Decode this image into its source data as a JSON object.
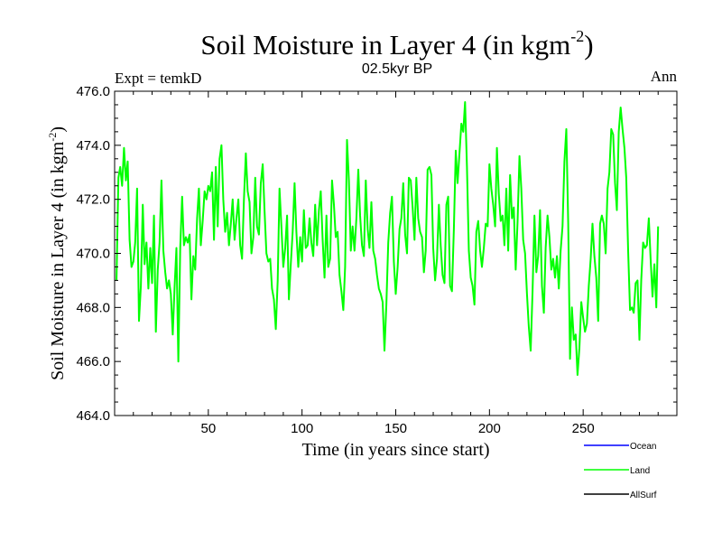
{
  "chart_data": {
    "type": "line",
    "title": "Soil Moisture in Layer 4 (in kgm",
    "title_superscript": "-2",
    "title_close": ")",
    "subtitle": "02.5kyr BP",
    "left_label": "Expt = temkD",
    "right_label": "Ann",
    "xlabel": "Time (in years since start)",
    "ylabel": "Soil Moisture in Layer 4 (in kgm",
    "ylabel_superscript": "-2",
    "ylabel_close": ")",
    "xlim": [
      0,
      300
    ],
    "ylim": [
      464,
      476
    ],
    "x_ticks": [
      50,
      100,
      150,
      200,
      250
    ],
    "x_tick_labels": [
      "50",
      "100",
      "150",
      "200",
      "250"
    ],
    "y_ticks": [
      464,
      466,
      468,
      470,
      472,
      474,
      476
    ],
    "y_tick_labels": [
      "464.0",
      "466.0",
      "468.0",
      "470.0",
      "472.0",
      "474.0",
      "476.0"
    ],
    "legend": [
      {
        "name": "Ocean",
        "color": "#0000ff"
      },
      {
        "name": "Land",
        "color": "#00ff00"
      },
      {
        "name": "AllSurf",
        "color": "#000000"
      }
    ],
    "series": [
      {
        "name": "Land",
        "color": "#00ff00",
        "x_start": 1,
        "x_step": 1,
        "values": [
          469.0,
          472.8,
          473.2,
          472.5,
          473.9,
          472.7,
          473.4,
          470.5,
          469.5,
          469.7,
          470.4,
          472.4,
          467.5,
          468.8,
          471.8,
          469.6,
          470.4,
          468.7,
          470.2,
          468.9,
          471.4,
          467.1,
          469.4,
          470.4,
          472.7,
          470.1,
          469.3,
          468.7,
          469.0,
          468.5,
          467.0,
          468.8,
          470.2,
          466.0,
          470.2,
          472.1,
          470.3,
          470.6,
          470.4,
          470.7,
          468.3,
          469.9,
          469.4,
          471.3,
          472.4,
          470.3,
          471.2,
          472.3,
          472.0,
          472.5,
          472.3,
          473.0,
          470.5,
          473.2,
          471.0,
          473.5,
          474.0,
          472.0,
          470.8,
          471.5,
          470.3,
          471.1,
          472.0,
          470.5,
          471.3,
          472.0,
          470.3,
          469.8,
          472.0,
          473.7,
          472.3,
          471.9,
          470.0,
          470.6,
          472.8,
          471.0,
          470.7,
          472.6,
          473.3,
          471.6,
          470.0,
          469.7,
          469.8,
          468.7,
          468.3,
          467.2,
          469.0,
          472.4,
          471.0,
          469.5,
          470.2,
          471.4,
          468.3,
          469.6,
          470.8,
          472.6,
          470.8,
          469.5,
          470.6,
          469.7,
          471.6,
          470.2,
          470.3,
          471.3,
          470.4,
          469.9,
          471.8,
          470.3,
          471.6,
          472.3,
          470.5,
          469.1,
          471.4,
          469.5,
          469.8,
          472.7,
          471.8,
          470.6,
          470.8,
          469.2,
          468.6,
          467.9,
          469.5,
          474.2,
          472.7,
          470.1,
          471.0,
          470.1,
          471.3,
          473.1,
          471.4,
          470.3,
          469.9,
          472.7,
          470.9,
          470.2,
          471.9,
          470.1,
          469.8,
          469.2,
          468.7,
          468.5,
          468.2,
          466.4,
          468.1,
          470.4,
          471.5,
          472.1,
          469.7,
          468.5,
          469.5,
          470.9,
          471.3,
          472.6,
          470.7,
          470.0,
          472.8,
          472.7,
          471.7,
          470.5,
          472.8,
          471.3,
          470.8,
          470.6,
          469.3,
          470.1,
          473.1,
          473.2,
          472.9,
          470.2,
          469.0,
          469.8,
          471.8,
          470.3,
          469.2,
          468.9,
          471.8,
          472.1,
          468.8,
          468.6,
          470.9,
          473.8,
          472.6,
          473.7,
          474.8,
          474.5,
          475.6,
          473.2,
          470.1,
          469.1,
          468.8,
          468.1,
          470.8,
          471.2,
          470.1,
          469.5,
          470.2,
          471.1,
          471.0,
          473.3,
          472.4,
          471.8,
          471.0,
          473.9,
          472.2,
          471.2,
          471.4,
          470.3,
          472.4,
          470.1,
          472.9,
          471.3,
          471.7,
          469.4,
          471.2,
          473.6,
          472.4,
          470.5,
          470.0,
          468.5,
          467.3,
          466.4,
          468.6,
          471.4,
          469.3,
          469.9,
          471.6,
          468.8,
          467.8,
          470.2,
          471.4,
          470.6,
          469.4,
          469.8,
          469.1,
          469.9,
          468.7,
          470.1,
          471.0,
          473.4,
          474.6,
          471.1,
          466.1,
          468.0,
          466.8,
          467.0,
          465.5,
          466.5,
          468.2,
          467.6,
          467.1,
          467.4,
          468.8,
          469.8,
          471.1,
          469.9,
          469.1,
          467.5,
          471.1,
          471.4,
          471.1,
          470.0,
          472.4,
          473.0,
          474.6,
          474.4,
          472.6,
          471.6,
          474.5,
          475.4,
          474.6,
          473.9,
          472.8,
          470.1,
          467.9,
          468.0,
          467.8,
          468.9,
          469.0,
          466.8,
          469.0,
          470.4,
          470.2,
          470.3,
          471.3,
          469.8,
          468.4,
          469.6,
          468.0,
          471.0
        ]
      }
    ]
  }
}
